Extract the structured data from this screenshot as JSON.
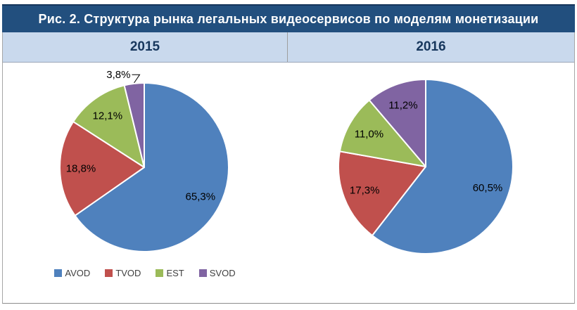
{
  "title": "Рис. 2. Структура рынка легальных видеосервисов по моделям монетизации",
  "panels": [
    {
      "year": "2015"
    },
    {
      "year": "2016"
    }
  ],
  "colors": {
    "title_bar": "#224F7E",
    "header_band": "#C9D9ED",
    "header_text": "#17375D",
    "avod": "#4F81BD",
    "tvod": "#C0504D",
    "est": "#9BBB59",
    "svod": "#8064A2",
    "label_text": "#000000",
    "legend_text": "#3F3F3F"
  },
  "chart_data": [
    {
      "type": "pie",
      "title": "2015",
      "categories": [
        "AVOD",
        "TVOD",
        "EST",
        "SVOD"
      ],
      "values": [
        65.3,
        18.8,
        12.1,
        3.8
      ],
      "labels": [
        "65,3%",
        "18,8%",
        "12,1%",
        "3,8%"
      ],
      "colors": [
        "#4F81BD",
        "#C0504D",
        "#9BBB59",
        "#8064A2"
      ],
      "start_angle_deg": 0,
      "direction": "clockwise",
      "label_placement": [
        "inside",
        "inside",
        "inside",
        "outside"
      ],
      "legend": {
        "visible": true,
        "position": "bottom",
        "items": [
          {
            "label": "AVOD",
            "color": "#4F81BD"
          },
          {
            "label": "TVOD",
            "color": "#C0504D"
          },
          {
            "label": "EST",
            "color": "#9BBB59"
          },
          {
            "label": "SVOD",
            "color": "#8064A2"
          }
        ]
      }
    },
    {
      "type": "pie",
      "title": "2016",
      "categories": [
        "AVOD",
        "TVOD",
        "EST",
        "SVOD"
      ],
      "values": [
        60.5,
        17.3,
        11.0,
        11.2
      ],
      "labels": [
        "60,5%",
        "17,3%",
        "11,0%",
        "11,2%"
      ],
      "colors": [
        "#4F81BD",
        "#C0504D",
        "#9BBB59",
        "#8064A2"
      ],
      "start_angle_deg": 0,
      "direction": "clockwise",
      "label_placement": [
        "inside",
        "inside",
        "inside",
        "inside"
      ],
      "legend": {
        "visible": false
      }
    }
  ]
}
